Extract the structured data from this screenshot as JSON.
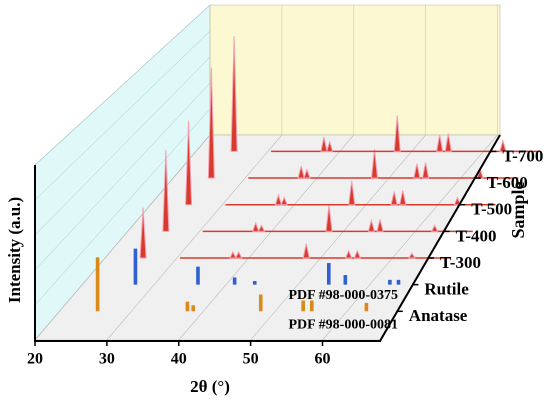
{
  "chart_data": {
    "type": "waterfall",
    "x_label": "2θ (°)",
    "y_label": "Intensity (a.u.)",
    "z_label": "Sample",
    "xlim": [
      20,
      68
    ],
    "xticks": [
      20,
      30,
      40,
      50,
      60
    ],
    "ylim": [
      0,
      100
    ],
    "grid": true,
    "series": [
      {
        "name": "Anatase",
        "label": "PDF #98-000-0081",
        "style": "stick",
        "color": "#d98a1a",
        "x": [
          25.3,
          37.8,
          38.6,
          48.0,
          53.9,
          55.1,
          62.7
        ],
        "values": [
          45,
          8,
          5,
          14,
          9,
          9,
          7
        ]
      },
      {
        "name": "Rutile",
        "label": "PDF #98-000-0375",
        "style": "stick",
        "color": "#2f5fd0",
        "x": [
          27.4,
          36.1,
          41.2,
          44.0,
          54.3,
          56.6,
          62.8,
          64.0
        ],
        "values": [
          30,
          15,
          6,
          3,
          18,
          8,
          4,
          4
        ]
      },
      {
        "name": "T-300",
        "style": "peak",
        "color": "#d83a2e",
        "x": [
          25.3,
          37.8,
          38.6,
          48.0,
          53.9,
          55.1,
          62.7
        ],
        "values": [
          42,
          5,
          5,
          12,
          6,
          6,
          4
        ]
      },
      {
        "name": "T-400",
        "style": "peak",
        "color": "#d83a2e",
        "x": [
          25.3,
          37.8,
          38.6,
          48.0,
          53.9,
          55.1,
          62.7
        ],
        "values": [
          68,
          7,
          5,
          22,
          9,
          10,
          5
        ]
      },
      {
        "name": "T-500",
        "style": "peak",
        "color": "#d83a2e",
        "x": [
          25.3,
          37.8,
          38.6,
          48.0,
          53.9,
          55.1,
          62.7
        ],
        "values": [
          70,
          8,
          6,
          20,
          11,
          12,
          6
        ]
      },
      {
        "name": "T-600",
        "style": "peak",
        "color": "#d83a2e",
        "x": [
          25.3,
          37.8,
          38.6,
          48.0,
          53.9,
          55.1,
          62.7
        ],
        "values": [
          92,
          10,
          7,
          24,
          12,
          13,
          7
        ]
      },
      {
        "name": "T-700",
        "style": "peak",
        "color": "#d83a2e",
        "x": [
          25.3,
          37.8,
          38.6,
          48.0,
          53.9,
          55.1,
          62.7
        ],
        "values": [
          96,
          12,
          8,
          30,
          14,
          15,
          9
        ]
      }
    ]
  }
}
